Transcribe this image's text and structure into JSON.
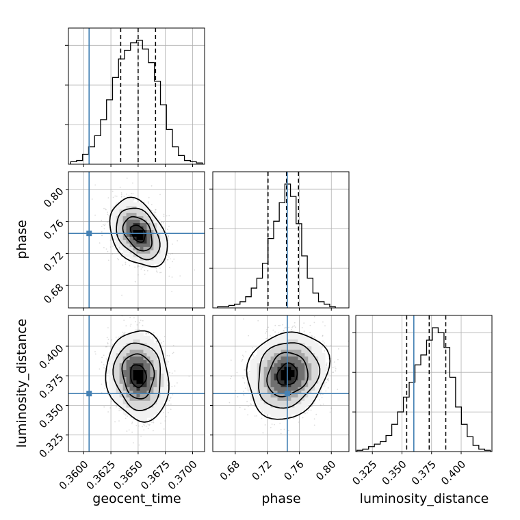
{
  "chart_data": {
    "type": "corner",
    "parameters": [
      "geocent_time",
      "phase",
      "luminosity_distance"
    ],
    "axis_labels": {
      "geocent_time": "geocent_time",
      "phase": "phase",
      "luminosity_distance": "luminosity_distance"
    },
    "truths": {
      "geocent_time": 0.3605,
      "phase": 0.745,
      "luminosity_distance": 0.36
    },
    "truth_color": "#4682b4",
    "ranges": {
      "geocent_time": [
        0.3586,
        0.3711
      ],
      "phase": [
        0.652,
        0.822
      ],
      "luminosity_distance": [
        0.311,
        0.426
      ]
    },
    "ticks": {
      "geocent_time": [
        {
          "v": 0.36,
          "label": "0.3600"
        },
        {
          "v": 0.3625,
          "label": "0.3625"
        },
        {
          "v": 0.365,
          "label": "0.3650"
        },
        {
          "v": 0.3675,
          "label": "0.3675"
        },
        {
          "v": 0.37,
          "label": "0.3700"
        }
      ],
      "phase": [
        {
          "v": 0.68,
          "label": "0.68"
        },
        {
          "v": 0.72,
          "label": "0.72"
        },
        {
          "v": 0.76,
          "label": "0.76"
        },
        {
          "v": 0.8,
          "label": "0.80"
        }
      ],
      "luminosity_distance": [
        {
          "v": 0.325,
          "label": "0.325"
        },
        {
          "v": 0.35,
          "label": "0.350"
        },
        {
          "v": 0.375,
          "label": "0.375"
        },
        {
          "v": 0.4,
          "label": "0.400"
        }
      ]
    },
    "quantiles": {
      "geocent_time": [
        0.3634,
        0.365,
        0.3666
      ],
      "phase": [
        0.721,
        0.744,
        0.759
      ],
      "luminosity_distance": [
        0.354,
        0.373,
        0.387
      ]
    },
    "marginals": {
      "geocent_time": {
        "edges": [
          0.3588,
          0.35935,
          0.3599,
          0.36045,
          0.361,
          0.36155,
          0.3621,
          0.36265,
          0.3632,
          0.36375,
          0.3643,
          0.36485,
          0.3654,
          0.36595,
          0.3665,
          0.36705,
          0.3676,
          0.36815,
          0.3687,
          0.36925,
          0.3698,
          0.37035,
          0.3709
        ],
        "counts": [
          2,
          3,
          8,
          14,
          23,
          36,
          52,
          70,
          85,
          92,
          98,
          100,
          93,
          82,
          67,
          48,
          28,
          14,
          7,
          3,
          2,
          1
        ]
      },
      "phase": {
        "edges": [
          0.658,
          0.665,
          0.672,
          0.679,
          0.686,
          0.693,
          0.7,
          0.707,
          0.714,
          0.721,
          0.728,
          0.735,
          0.742,
          0.749,
          0.756,
          0.763,
          0.77,
          0.777,
          0.784,
          0.791,
          0.798,
          0.805
        ],
        "counts": [
          1,
          1,
          2,
          3,
          5,
          9,
          16,
          24,
          36,
          56,
          70,
          85,
          100,
          90,
          68,
          42,
          24,
          12,
          5,
          3,
          1
        ]
      },
      "luminosity_distance": {
        "edges": [
          0.312,
          0.3169,
          0.3218,
          0.3267,
          0.3316,
          0.3365,
          0.3414,
          0.3463,
          0.3512,
          0.3561,
          0.361,
          0.3659,
          0.3708,
          0.3757,
          0.3806,
          0.3855,
          0.3904,
          0.3953,
          0.4002,
          0.4051,
          0.41,
          0.4149,
          0.4198,
          0.4247
        ],
        "counts": [
          1,
          2,
          4,
          6,
          8,
          13,
          22,
          32,
          44,
          56,
          70,
          78,
          90,
          100,
          96,
          84,
          60,
          36,
          22,
          12,
          5,
          2,
          1
        ]
      }
    },
    "joint_peaks": {
      "phase|geocent_time": {
        "mean": [
          0.365,
          0.745
        ],
        "sd": [
          0.00115,
          0.0185
        ],
        "rho": -0.35
      },
      "luminosity_distance|geocent_time": {
        "mean": [
          0.365,
          0.375
        ],
        "sd": [
          0.00125,
          0.0165
        ],
        "rho": -0.1
      },
      "luminosity_distance|phase": {
        "mean": [
          0.745,
          0.376
        ],
        "sd": [
          0.022,
          0.016
        ],
        "rho": 0.15
      }
    }
  }
}
